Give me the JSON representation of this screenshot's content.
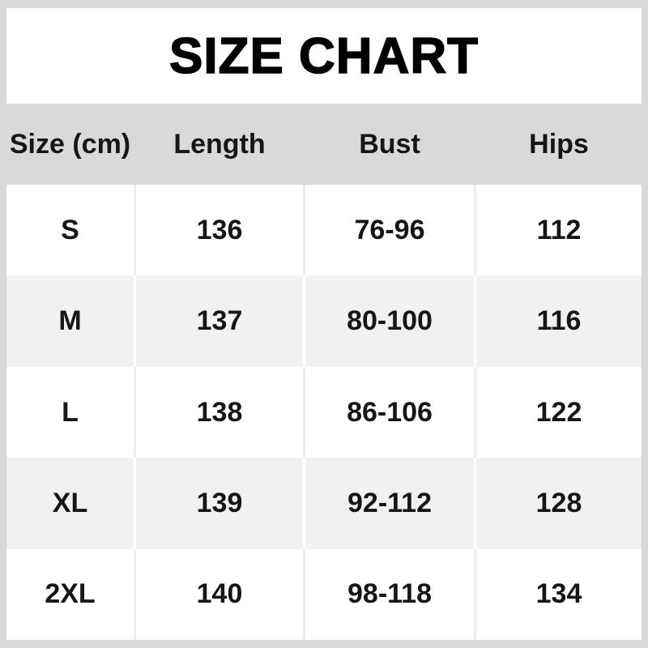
{
  "title": "SIZE CHART",
  "unit_note": "cm",
  "colors": {
    "page_border": "#d9d9d9",
    "header_bg": "#d9d9d9",
    "row_bg_white": "#ffffff",
    "row_bg_gray": "#f1f1f1",
    "separator_on_white": "#ececec",
    "separator_on_gray": "#ffffff",
    "title_text": "#000000",
    "cell_text": "#161616"
  },
  "table": {
    "headers": [
      "Size (cm)",
      "Length",
      "Bust",
      "Hips"
    ],
    "rows": [
      [
        "S",
        "136",
        "76-96",
        "112"
      ],
      [
        "M",
        "137",
        "80-100",
        "116"
      ],
      [
        "L",
        "138",
        "86-106",
        "122"
      ],
      [
        "XL",
        "139",
        "92-112",
        "128"
      ],
      [
        "2XL",
        "140",
        "98-118",
        "134"
      ]
    ]
  },
  "chart_data": {
    "type": "table",
    "title": "SIZE CHART",
    "columns": [
      "Size (cm)",
      "Length",
      "Bust",
      "Hips"
    ],
    "categories": [
      "S",
      "M",
      "L",
      "XL",
      "2XL"
    ],
    "series": [
      {
        "name": "Length",
        "values": [
          136,
          137,
          138,
          139,
          140
        ]
      },
      {
        "name": "Bust",
        "values": [
          "76-96",
          "80-100",
          "86-106",
          "92-112",
          "98-118"
        ]
      },
      {
        "name": "Hips",
        "values": [
          112,
          116,
          122,
          128,
          134
        ]
      }
    ]
  }
}
